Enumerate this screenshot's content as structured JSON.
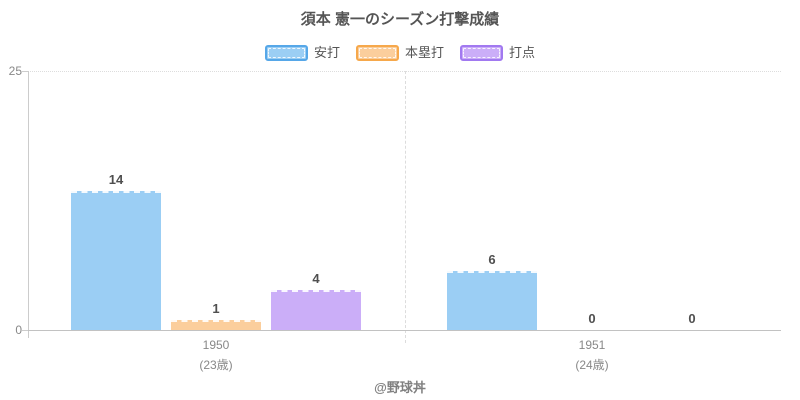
{
  "page": {
    "footer": "@野球丼"
  },
  "chart_data": {
    "type": "bar",
    "title": "須本 憲一のシーズン打撃成績",
    "categories": [
      "1950",
      "1951"
    ],
    "category_sublabels": [
      "(23歳)",
      "(24歳)"
    ],
    "series": [
      {
        "key": "hits",
        "name": "安打",
        "values": [
          14,
          6
        ],
        "fill": "#9BCEF4",
        "stroke": "#56A7E8"
      },
      {
        "key": "home-runs",
        "name": "本塁打",
        "values": [
          1,
          0
        ],
        "fill": "#FBCE9C",
        "stroke": "#F6A84B"
      },
      {
        "key": "rbi",
        "name": "打点",
        "values": [
          4,
          0
        ],
        "fill": "#CBAEF8",
        "stroke": "#A179F0"
      }
    ],
    "ylim": [
      0,
      25
    ],
    "y_ticks": [
      0,
      25
    ],
    "legend_position": "top",
    "grid": "top gridline dotted, dashed divider between categories",
    "value_labels": true
  },
  "colors": {
    "axis_line": "#CCCCCC",
    "baseline": "#C2C2C2",
    "gridline": "#DDDDDD",
    "tick_label": "#888888",
    "value_label": "#4F4F4F",
    "title": "#555555",
    "footer": "#808080",
    "background": "#FFFFFF"
  }
}
